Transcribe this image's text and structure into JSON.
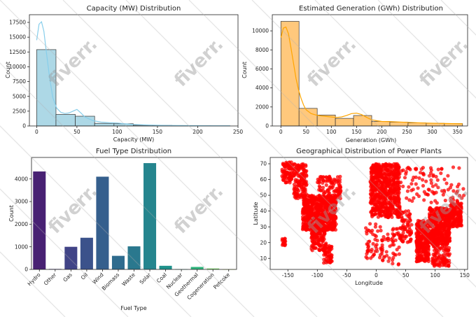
{
  "chart_data": [
    {
      "type": "bar",
      "title": "Capacity (MW) Distribution",
      "xlabel": "Capacity (MW)",
      "ylabel": "Count",
      "xlim": [
        -9,
        250
      ],
      "ylim": [
        0,
        18800
      ],
      "xticks": [
        0,
        50,
        100,
        150,
        200,
        250
      ],
      "yticks": [
        0,
        2500,
        5000,
        7500,
        10000,
        12500,
        15000,
        17500
      ],
      "bar_color": "#add8e6",
      "line_color": "#87ceeb",
      "bins": [
        {
          "x0": 0,
          "x1": 24,
          "count": 12900
        },
        {
          "x0": 24,
          "x1": 48,
          "count": 1950
        },
        {
          "x0": 48,
          "x1": 72,
          "count": 1650
        },
        {
          "x0": 72,
          "x1": 96,
          "count": 450
        },
        {
          "x0": 96,
          "x1": 120,
          "count": 380
        },
        {
          "x0": 120,
          "x1": 144,
          "count": 130
        },
        {
          "x0": 144,
          "x1": 168,
          "count": 100
        },
        {
          "x0": 168,
          "x1": 192,
          "count": 60
        },
        {
          "x0": 192,
          "x1": 216,
          "count": 40
        },
        {
          "x0": 216,
          "x1": 240,
          "count": 30
        }
      ],
      "kde": [
        [
          0,
          14500
        ],
        [
          3,
          17200
        ],
        [
          6,
          17600
        ],
        [
          9,
          16000
        ],
        [
          12,
          12500
        ],
        [
          16,
          8200
        ],
        [
          20,
          4800
        ],
        [
          25,
          3000
        ],
        [
          30,
          2300
        ],
        [
          35,
          2100
        ],
        [
          40,
          2200
        ],
        [
          45,
          2500
        ],
        [
          50,
          2800
        ],
        [
          55,
          2200
        ],
        [
          60,
          1500
        ],
        [
          70,
          900
        ],
        [
          80,
          650
        ],
        [
          90,
          550
        ],
        [
          100,
          500
        ],
        [
          110,
          380
        ],
        [
          120,
          250
        ],
        [
          140,
          150
        ],
        [
          160,
          100
        ],
        [
          180,
          70
        ],
        [
          200,
          50
        ],
        [
          220,
          40
        ],
        [
          240,
          30
        ]
      ]
    },
    {
      "type": "bar",
      "title": "Estimated Generation (GWh) Distribution",
      "xlabel": "Generation (GWh)",
      "ylabel": "Count",
      "xlim": [
        -17,
        370
      ],
      "ylim": [
        0,
        11700
      ],
      "xticks": [
        0,
        50,
        100,
        150,
        200,
        250,
        300,
        350
      ],
      "yticks": [
        0,
        2000,
        4000,
        6000,
        8000,
        10000
      ],
      "bar_color": "#ffc87c",
      "line_color": "#ffa500",
      "bins": [
        {
          "x0": 0,
          "x1": 36,
          "count": 11000
        },
        {
          "x0": 36,
          "x1": 72,
          "count": 1850
        },
        {
          "x0": 72,
          "x1": 108,
          "count": 1150
        },
        {
          "x0": 108,
          "x1": 144,
          "count": 800
        },
        {
          "x0": 144,
          "x1": 180,
          "count": 1100
        },
        {
          "x0": 180,
          "x1": 216,
          "count": 480
        },
        {
          "x0": 216,
          "x1": 252,
          "count": 400
        },
        {
          "x0": 252,
          "x1": 288,
          "count": 320
        },
        {
          "x0": 288,
          "x1": 324,
          "count": 280
        },
        {
          "x0": 324,
          "x1": 360,
          "count": 250
        }
      ],
      "kde": [
        [
          0,
          9300
        ],
        [
          5,
          10300
        ],
        [
          10,
          10400
        ],
        [
          15,
          9700
        ],
        [
          20,
          8200
        ],
        [
          25,
          6600
        ],
        [
          30,
          5000
        ],
        [
          35,
          3800
        ],
        [
          40,
          2900
        ],
        [
          45,
          2200
        ],
        [
          50,
          1700
        ],
        [
          60,
          1300
        ],
        [
          70,
          1150
        ],
        [
          80,
          1050
        ],
        [
          90,
          1000
        ],
        [
          100,
          950
        ],
        [
          110,
          900
        ],
        [
          120,
          950
        ],
        [
          130,
          1100
        ],
        [
          140,
          1300
        ],
        [
          150,
          1350
        ],
        [
          160,
          1200
        ],
        [
          170,
          900
        ],
        [
          180,
          650
        ],
        [
          190,
          550
        ],
        [
          200,
          480
        ],
        [
          220,
          450
        ],
        [
          250,
          380
        ],
        [
          280,
          320
        ],
        [
          310,
          280
        ],
        [
          340,
          250
        ],
        [
          360,
          230
        ]
      ]
    },
    {
      "type": "bar",
      "title": "Fuel Type Distribution",
      "xlabel": "Fuel Type",
      "ylabel": "Count",
      "ylim": [
        0,
        4950
      ],
      "yticks": [
        0,
        1000,
        2000,
        3000,
        4000
      ],
      "categories": [
        "Hydro",
        "Other",
        "Gas",
        "Oil",
        "Wind",
        "Biomass",
        "Waste",
        "Solar",
        "Coal",
        "Nuclear",
        "Geothermal",
        "Cogeneration",
        "Petcoke"
      ],
      "values": [
        4330,
        20,
        1000,
        1400,
        4100,
        600,
        1020,
        4700,
        160,
        10,
        110,
        40,
        5
      ],
      "colors": [
        "#482173",
        "#45347f",
        "#414487",
        "#3b528b",
        "#355f8d",
        "#2f6c8e",
        "#2a788e",
        "#25858e",
        "#1f928c",
        "#21a585",
        "#2fb47c",
        "#6ccd5a",
        "#b5de2b"
      ]
    },
    {
      "type": "scatter",
      "title": "Geographical Distribution of Power Plants",
      "xlabel": "Longitude",
      "ylabel": "Latitude",
      "xlim": [
        -180,
        155
      ],
      "ylim": [
        3,
        74
      ],
      "xticks": [
        -150,
        -100,
        -50,
        0,
        50,
        100,
        150
      ],
      "yticks": [
        10,
        20,
        30,
        40,
        50,
        60,
        70
      ],
      "color": "#ff0000",
      "regions": [
        {
          "lon": [
            -160,
            -140
          ],
          "lat": [
            58,
            71
          ],
          "n": 90
        },
        {
          "lon": [
            -140,
            -118
          ],
          "lat": [
            48,
            70
          ],
          "n": 140
        },
        {
          "lon": [
            -125,
            -68
          ],
          "lat": [
            28,
            50
          ],
          "n": 700
        },
        {
          "lon": [
            -110,
            -85
          ],
          "lat": [
            15,
            32
          ],
          "n": 150
        },
        {
          "lon": [
            -90,
            -75
          ],
          "lat": [
            7,
            18
          ],
          "n": 60
        },
        {
          "lon": [
            -100,
            -60
          ],
          "lat": [
            48,
            62
          ],
          "n": 100
        },
        {
          "lon": [
            -160,
            -154
          ],
          "lat": [
            18,
            23
          ],
          "n": 20
        },
        {
          "lon": [
            -10,
            40
          ],
          "lat": [
            36,
            70
          ],
          "n": 650
        },
        {
          "lon": [
            -18,
            10
          ],
          "lat": [
            10,
            32
          ],
          "n": 50
        },
        {
          "lon": [
            10,
            40
          ],
          "lat": [
            5,
            30
          ],
          "n": 50
        },
        {
          "lon": [
            40,
            60
          ],
          "lat": [
            20,
            40
          ],
          "n": 70
        },
        {
          "lon": [
            68,
            90
          ],
          "lat": [
            8,
            34
          ],
          "n": 300
        },
        {
          "lon": [
            90,
            125
          ],
          "lat": [
            20,
            42
          ],
          "n": 450
        },
        {
          "lon": [
            125,
            145
          ],
          "lat": [
            30,
            45
          ],
          "n": 150
        },
        {
          "lon": [
            95,
            125
          ],
          "lat": [
            5,
            20
          ],
          "n": 120
        },
        {
          "lon": [
            40,
            150
          ],
          "lat": [
            45,
            68
          ],
          "n": 100
        }
      ]
    }
  ]
}
